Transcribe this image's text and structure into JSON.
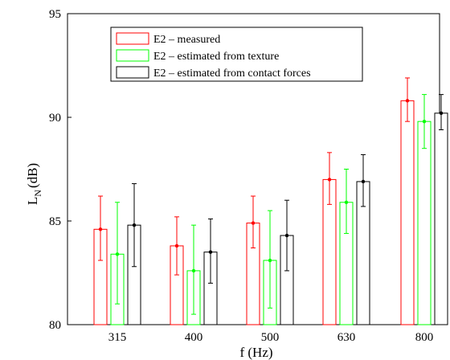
{
  "chart_data": {
    "type": "bar",
    "xlabel": "f (Hz)",
    "ylabel_main": "L",
    "ylabel_sub": "N",
    "ylabel_unit": "(dB)",
    "categories": [
      "315",
      "400",
      "500",
      "630",
      "800"
    ],
    "ylim": [
      80,
      95
    ],
    "yticks": [
      "80",
      "85",
      "90",
      "95"
    ],
    "grid": false,
    "legend_position": "top-left",
    "series": [
      {
        "name": "E2 – measured",
        "color": "#ff0000",
        "values": [
          84.6,
          83.8,
          84.9,
          87.0,
          90.8
        ],
        "err_low": [
          83.1,
          82.4,
          83.7,
          85.8,
          89.8
        ],
        "err_high": [
          86.2,
          85.2,
          86.2,
          88.3,
          91.9
        ]
      },
      {
        "name": "E2 – estimated from texture",
        "color": "#00ff00",
        "values": [
          83.4,
          82.6,
          83.1,
          85.9,
          89.8
        ],
        "err_low": [
          81.0,
          80.5,
          80.8,
          84.4,
          88.5
        ],
        "err_high": [
          85.9,
          84.8,
          85.5,
          87.5,
          91.1
        ]
      },
      {
        "name": "E2 – estimated from contact forces",
        "color": "#000000",
        "values": [
          84.8,
          83.5,
          84.3,
          86.9,
          90.2
        ],
        "err_low": [
          82.8,
          82.0,
          82.6,
          85.7,
          89.4
        ],
        "err_high": [
          86.8,
          85.1,
          86.0,
          88.2,
          91.1
        ]
      }
    ]
  }
}
